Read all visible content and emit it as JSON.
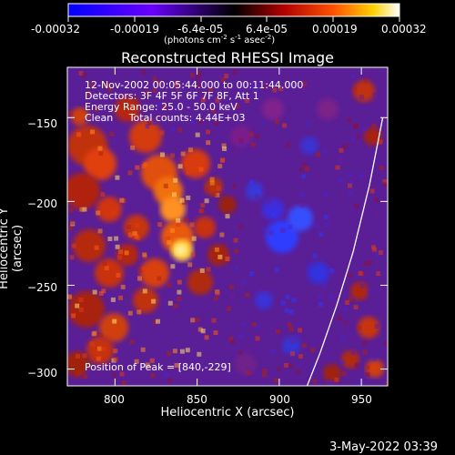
{
  "colorbar": {
    "ticks": [
      "-0.00032",
      "-0.00019",
      "-6.4e-05",
      "6.4e-05",
      "0.00019",
      "0.00032"
    ],
    "unit_prefix": "(photons cm",
    "unit_exp1": "-2",
    "unit_mid": " s",
    "unit_exp2": "-1",
    "unit_mid2": " asec",
    "unit_exp3": "-2",
    "unit_suffix": ")"
  },
  "plot": {
    "title": "Reconstructed RHESSI Image",
    "annotations": [
      "12-Nov-2002 00:05:44.000 to 00:11:44.000",
      "Detectors: 3F 4F 5F 6F 7F 8F, Att 1",
      "Energy Range: 25.0 - 50.0 keV",
      "Clean     Total counts: 4.44E+03"
    ],
    "peak_label": "Position of Peak = [840,-229]",
    "xlabel": "Heliocentric X (arcsec)",
    "ylabel": "Heliocentric Y (arcsec)",
    "date_stamp": "3-May-2022 03:39"
  },
  "chart_data": {
    "type": "heatmap",
    "title": "Reconstructed RHESSI Image",
    "xlabel": "Heliocentric X (arcsec)",
    "ylabel": "Heliocentric Y (arcsec)",
    "xlim": [
      771,
      966
    ],
    "ylim": [
      -310,
      -120
    ],
    "x_ticks": [
      800,
      850,
      900,
      950
    ],
    "y_ticks": [
      -150,
      -200,
      -250,
      -300
    ],
    "x_tick_labels": [
      "800",
      "850",
      "900",
      "950"
    ],
    "y_tick_labels": [
      "−150",
      "−200",
      "−250",
      "−300"
    ],
    "colorbar_range": [
      -0.00032,
      0.00032
    ],
    "peak_position": [
      840,
      -229
    ],
    "limb_curve": {
      "x": [
        917,
        925,
        935,
        945,
        955,
        963
      ],
      "y": [
        -310,
        -290,
        -262,
        -230,
        -190,
        -150
      ]
    }
  }
}
